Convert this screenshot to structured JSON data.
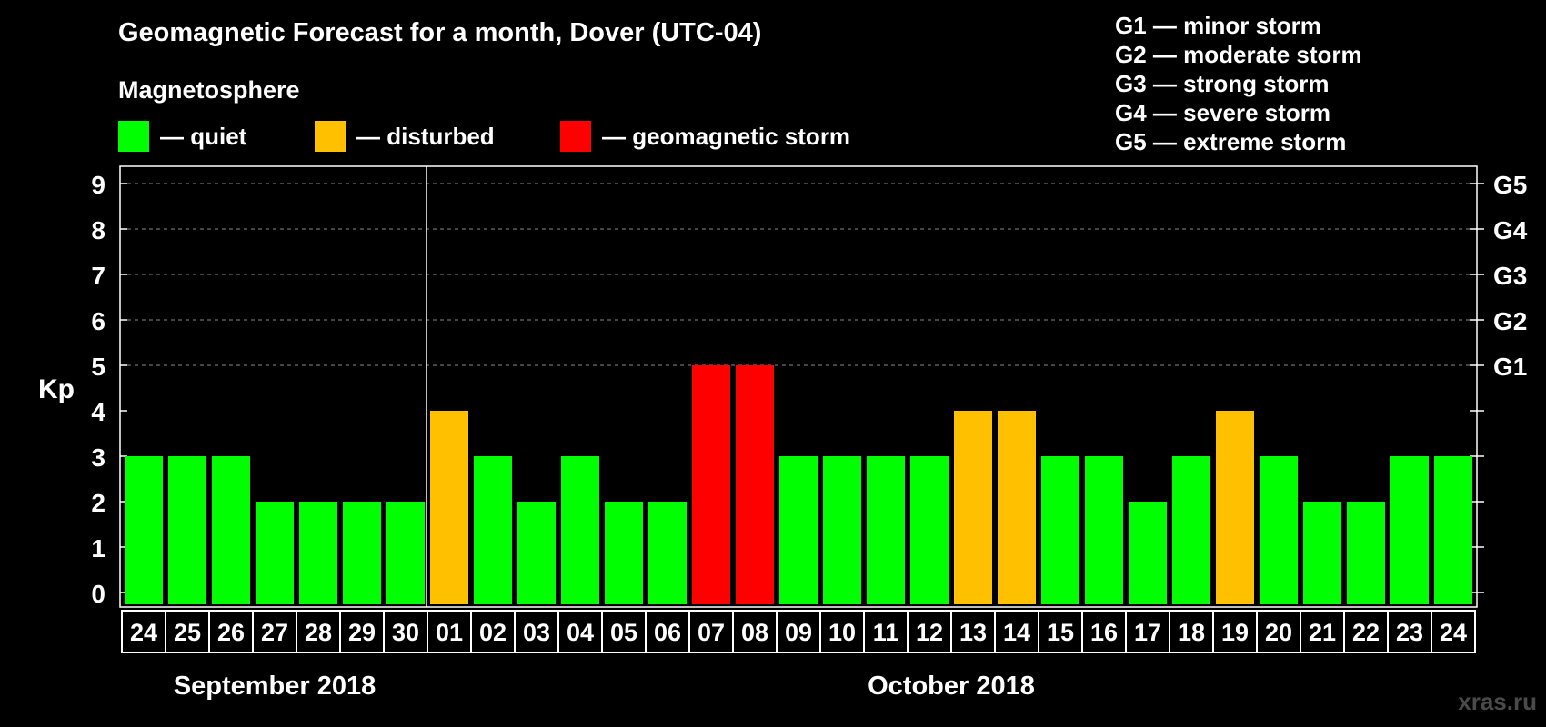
{
  "title": "Geomagnetic Forecast for a month, Dover (UTC-04)",
  "subtitle": "Magnetosphere",
  "legend": [
    {
      "label": "— quiet",
      "color": "#00ff00"
    },
    {
      "label": "— disturbed",
      "color": "#ffc000"
    },
    {
      "label": "— geomagnetic storm",
      "color": "#ff0000"
    }
  ],
  "storm_levels": [
    "G1 — minor storm",
    "G2 — moderate storm",
    "G3 — strong storm",
    "G4 — severe storm",
    "G5 — extreme storm"
  ],
  "watermark": "xras.ru",
  "chart_data": {
    "type": "bar",
    "ylabel": "Kp",
    "ylim": [
      0,
      9
    ],
    "yticks": [
      0,
      1,
      2,
      3,
      4,
      5,
      6,
      7,
      8,
      9
    ],
    "right_axis_labels": [
      {
        "value": 5,
        "label": "G1"
      },
      {
        "value": 6,
        "label": "G2"
      },
      {
        "value": 7,
        "label": "G3"
      },
      {
        "value": 8,
        "label": "G4"
      },
      {
        "value": 9,
        "label": "G5"
      }
    ],
    "grid": "dashed horizontal at Kp 5-9",
    "categories": [
      "24",
      "25",
      "26",
      "27",
      "28",
      "29",
      "30",
      "01",
      "02",
      "03",
      "04",
      "05",
      "06",
      "07",
      "08",
      "09",
      "10",
      "11",
      "12",
      "13",
      "14",
      "15",
      "16",
      "17",
      "18",
      "19",
      "20",
      "21",
      "22",
      "23",
      "24"
    ],
    "values": [
      3,
      3,
      3,
      2,
      2,
      2,
      2,
      4,
      3,
      2,
      3,
      2,
      2,
      5,
      5,
      3,
      3,
      3,
      3,
      4,
      4,
      3,
      3,
      2,
      3,
      4,
      3,
      2,
      2,
      3,
      3
    ],
    "months": [
      {
        "label": "September 2018",
        "start_index": 0,
        "end_index": 6
      },
      {
        "label": "October 2018",
        "start_index": 7,
        "end_index": 30
      }
    ],
    "color_by_level": {
      "quiet": "#00ff00",
      "disturbed": "#ffc000",
      "storm": "#ff0000"
    }
  }
}
